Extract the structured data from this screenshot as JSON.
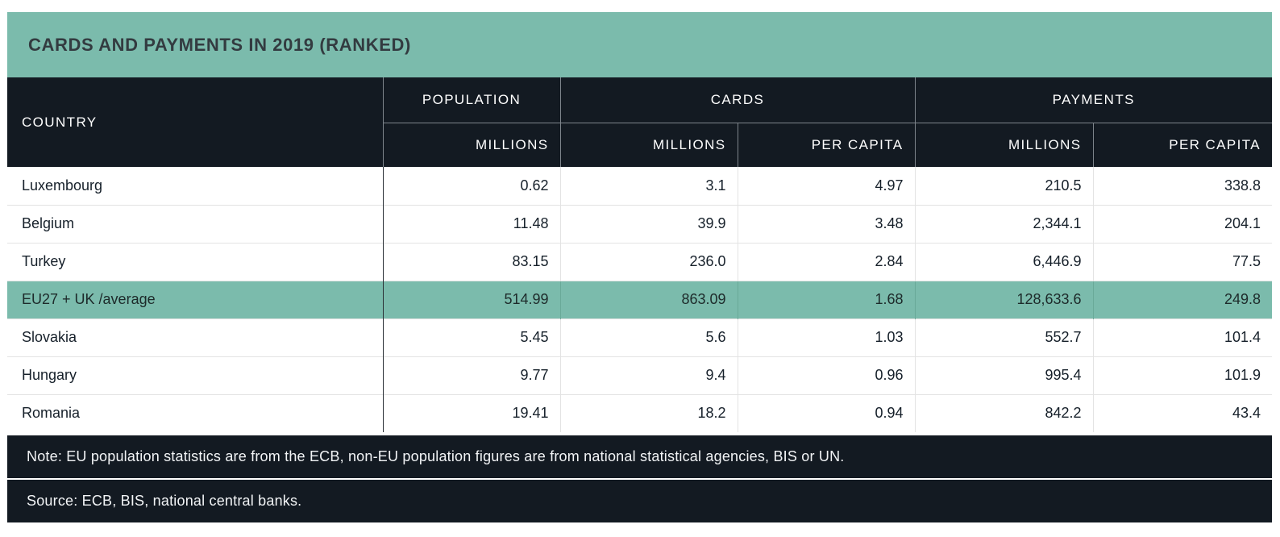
{
  "title": "CARDS AND PAYMENTS IN 2019 (RANKED)",
  "colors": {
    "accent_green": "#7bbbac",
    "band_dark": "#131a22",
    "title_text": "#333b40",
    "row_divider": "#e3e3e3"
  },
  "table": {
    "headers": {
      "country": "COUNTRY",
      "population_group": "POPULATION",
      "cards_group": "CARDS",
      "payments_group": "PAYMENTS",
      "population_millions": "MILLIONS",
      "cards_millions": "MILLIONS",
      "cards_per_capita": "PER CAPITA",
      "payments_millions": "MILLIONS",
      "payments_per_capita": "PER CAPITA"
    },
    "rows": [
      {
        "country": "Luxembourg",
        "population_millions": "0.62",
        "cards_millions": "3.1",
        "cards_per_capita": "4.97",
        "payments_millions": "210.5",
        "payments_per_capita": "338.8"
      },
      {
        "country": "Belgium",
        "population_millions": "11.48",
        "cards_millions": "39.9",
        "cards_per_capita": "3.48",
        "payments_millions": "2,344.1",
        "payments_per_capita": "204.1"
      },
      {
        "country": "Turkey",
        "population_millions": "83.15",
        "cards_millions": "236.0",
        "cards_per_capita": "2.84",
        "payments_millions": "6,446.9",
        "payments_per_capita": "77.5"
      },
      {
        "country": "EU27 + UK /average",
        "population_millions": "514.99",
        "cards_millions": "863.09",
        "cards_per_capita": "1.68",
        "payments_millions": "128,633.6",
        "payments_per_capita": "249.8"
      },
      {
        "country": "Slovakia",
        "population_millions": "5.45",
        "cards_millions": "5.6",
        "cards_per_capita": "1.03",
        "payments_millions": "552.7",
        "payments_per_capita": "101.4"
      },
      {
        "country": "Hungary",
        "population_millions": "9.77",
        "cards_millions": "9.4",
        "cards_per_capita": "0.96",
        "payments_millions": "995.4",
        "payments_per_capita": "101.9"
      },
      {
        "country": "Romania",
        "population_millions": "19.41",
        "cards_millions": "18.2",
        "cards_per_capita": "0.94",
        "payments_millions": "842.2",
        "payments_per_capita": "43.4"
      }
    ]
  },
  "note": "Note: EU population statistics are from the ECB, non-EU population figures are from national statistical agencies, BIS or UN.",
  "source": "Source: ECB, BIS, national central banks.",
  "chart_data": {
    "type": "table",
    "title": "CARDS AND PAYMENTS IN 2019 (RANKED)",
    "columns": [
      "COUNTRY",
      "POPULATION MILLIONS",
      "CARDS MILLIONS",
      "CARDS PER CAPITA",
      "PAYMENTS MILLIONS",
      "PAYMENTS PER CAPITA"
    ],
    "rows": [
      [
        "Luxembourg",
        0.62,
        3.1,
        4.97,
        210.5,
        338.8
      ],
      [
        "Belgium",
        11.48,
        39.9,
        3.48,
        2344.1,
        204.1
      ],
      [
        "Turkey",
        83.15,
        236.0,
        2.84,
        6446.9,
        77.5
      ],
      [
        "EU27 + UK /average",
        514.99,
        863.09,
        1.68,
        128633.6,
        249.8
      ],
      [
        "Slovakia",
        5.45,
        5.6,
        1.03,
        552.7,
        101.4
      ],
      [
        "Hungary",
        9.77,
        9.4,
        0.96,
        995.4,
        101.9
      ],
      [
        "Romania",
        19.41,
        18.2,
        0.94,
        842.2,
        43.4
      ]
    ],
    "highlighted_row": "EU27 + UK /average",
    "note": "Note: EU population statistics are from the ECB, non-EU population figures are from national statistical agencies, BIS or UN.",
    "source": "Source: ECB, BIS, national central banks."
  }
}
